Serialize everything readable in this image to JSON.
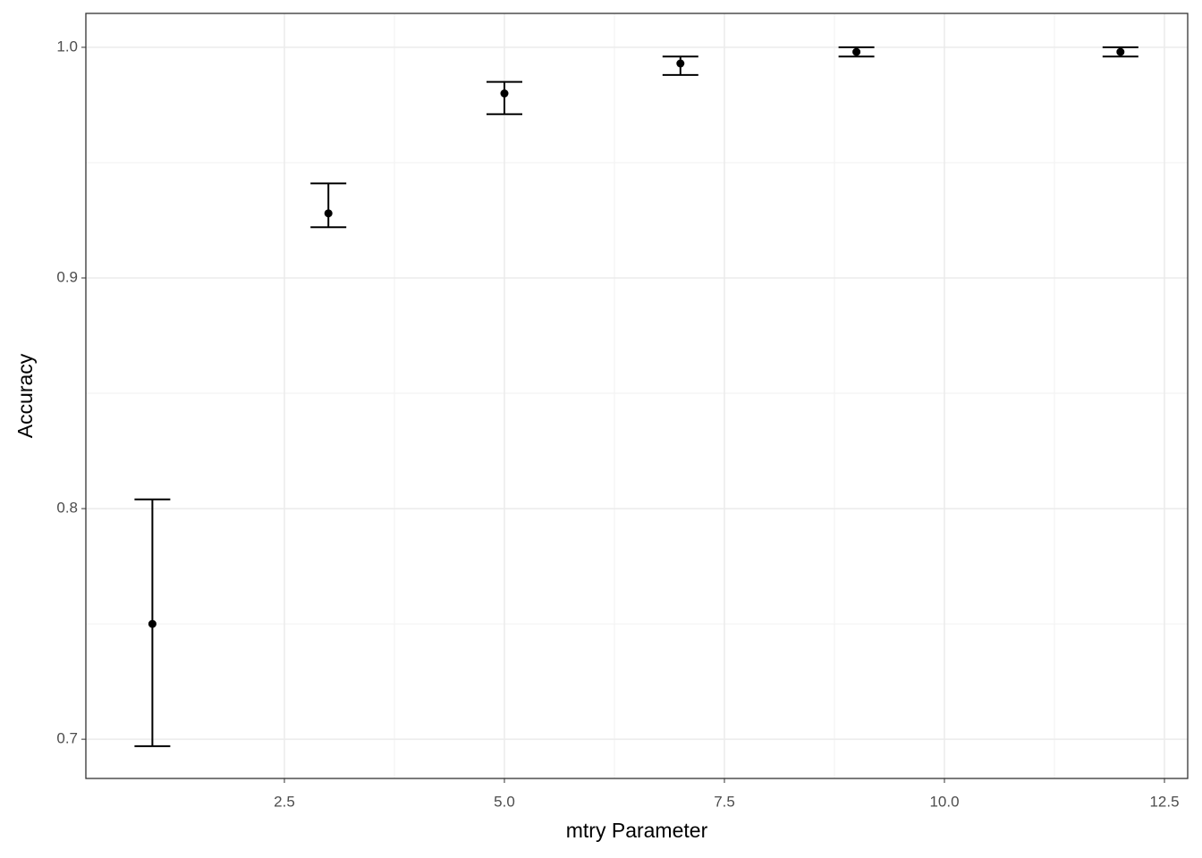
{
  "chart_data": {
    "type": "errorbar",
    "x_label": "mtry Parameter",
    "y_label": "Accuracy",
    "x": [
      1,
      3,
      5,
      7,
      9,
      12
    ],
    "values": [
      0.75,
      0.928,
      0.98,
      0.993,
      0.998,
      0.998
    ],
    "lower": [
      0.697,
      0.922,
      0.971,
      0.988,
      0.996,
      0.996
    ],
    "upper": [
      0.804,
      0.941,
      0.985,
      0.996,
      1.0,
      1.0
    ],
    "color": "#000000",
    "xlim": [
      0.244,
      12.764
    ],
    "ylim": [
      0.683,
      1.0147
    ],
    "xticks": [
      2.5,
      {
        "value": 5,
        "label": "5.0"
      },
      7.5,
      {
        "value": 10,
        "label": "10.0"
      },
      12.5
    ],
    "yticks": [
      0.7,
      0.8,
      0.9,
      {
        "value": 1,
        "label": "1.0"
      }
    ],
    "grid": true
  }
}
